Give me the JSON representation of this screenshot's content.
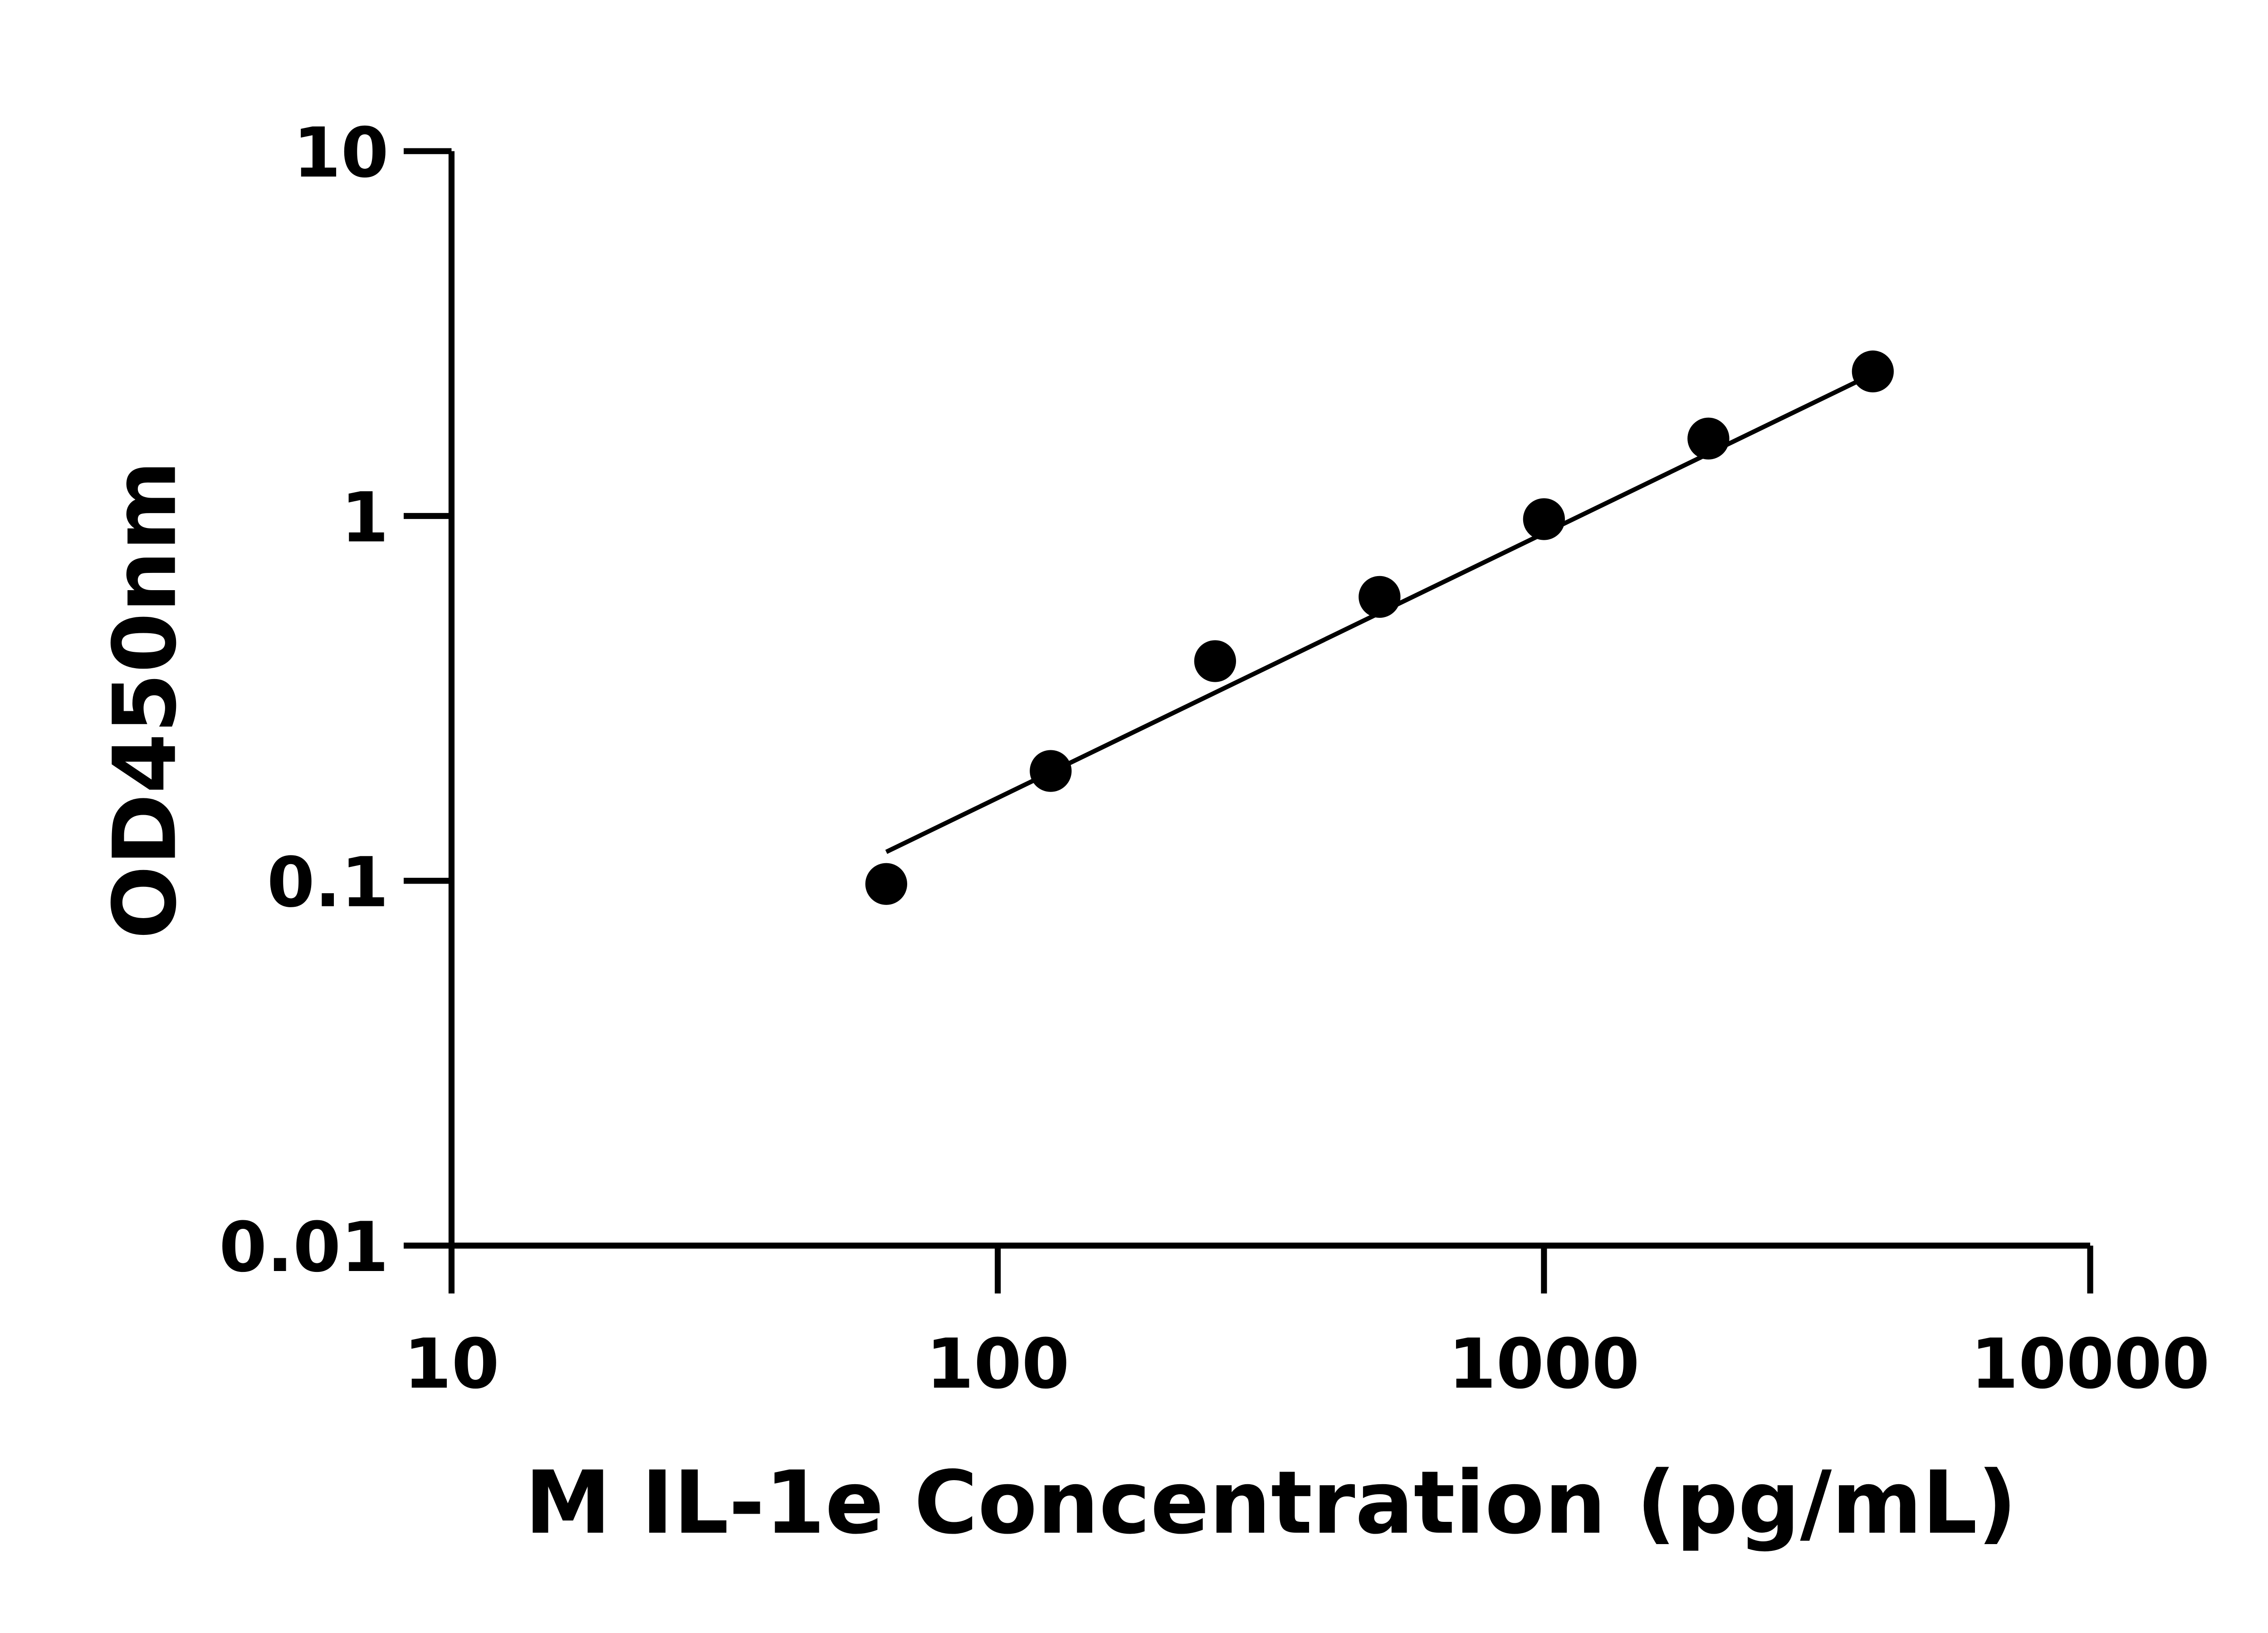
{
  "chart_data": {
    "type": "scatter",
    "title": "",
    "xlabel": "M IL-1e Concentration (pg/mL)",
    "ylabel": "OD450nm",
    "xscale": "log",
    "yscale": "log",
    "xlim": [
      10,
      10000
    ],
    "ylim": [
      0.01,
      10
    ],
    "xticks": [
      "10",
      "100",
      "1000",
      "10000"
    ],
    "yticks": [
      "0.01",
      "0.1",
      "1",
      "10"
    ],
    "grid": false,
    "legend": "none",
    "series": [
      {
        "x": [
          62.5,
          125,
          250,
          500,
          1000,
          2000,
          4000
        ],
        "y": [
          0.098,
          0.2,
          0.4,
          0.6,
          0.98,
          1.63,
          2.49
        ],
        "marker": "circle",
        "color": "#000000",
        "fit_line": {
          "x": [
            62.5,
            4000
          ],
          "y": [
            0.12,
            2.45
          ]
        }
      }
    ]
  }
}
